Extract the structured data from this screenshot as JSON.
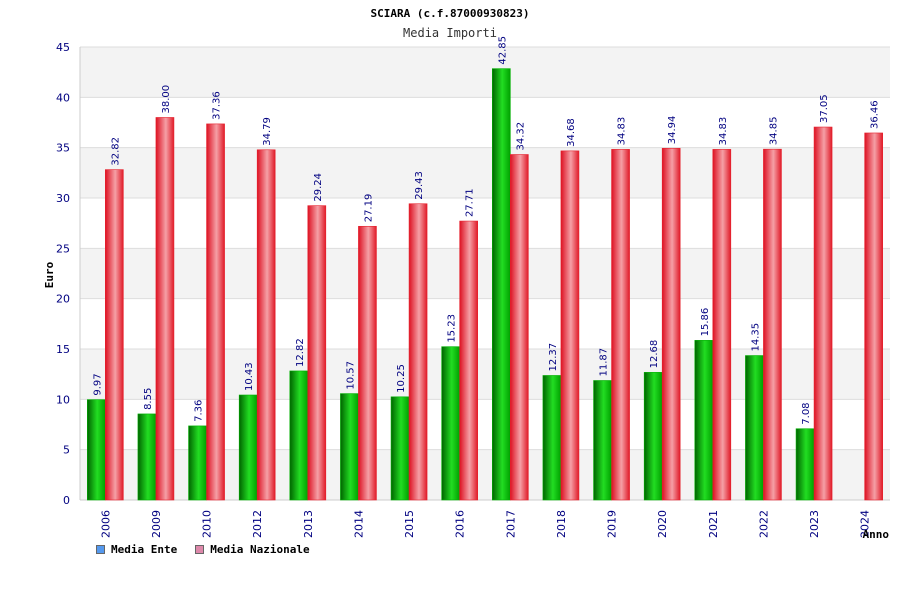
{
  "colors": {
    "ente": "#00b000",
    "nazionale": "#e6202c",
    "legend_ente": "#5599ee",
    "legend_nazionale": "#dd88aa",
    "band": "#f3f3f3"
  },
  "chart_data": {
    "type": "bar",
    "title": "SCIARA (c.f.87000930823)",
    "subtitle": "Media Importi",
    "xlabel": "Anno",
    "ylabel": "Euro",
    "ylim": [
      0,
      45
    ],
    "yticks": [
      0,
      5,
      10,
      15,
      20,
      25,
      30,
      35,
      40,
      45
    ],
    "grid": true,
    "legend_position": "bottom-left",
    "categories": [
      "2006",
      "2009",
      "2010",
      "2012",
      "2013",
      "2014",
      "2015",
      "2016",
      "2017",
      "2018",
      "2019",
      "2020",
      "2021",
      "2022",
      "2023",
      "2024"
    ],
    "series": [
      {
        "name": "Media Ente",
        "values": [
          9.97,
          8.55,
          7.36,
          10.43,
          12.82,
          10.57,
          10.25,
          15.23,
          42.85,
          12.37,
          11.87,
          12.68,
          15.86,
          14.35,
          7.08,
          null
        ],
        "labels": [
          "9.97",
          "8.55",
          "7.36",
          "10.43",
          "12.82",
          "10.57",
          "10.25",
          "15.23",
          "42.85",
          "12.37",
          "11.87",
          "12.68",
          "15.86",
          "14.35",
          "7.08",
          ""
        ]
      },
      {
        "name": "Media Nazionale",
        "values": [
          32.82,
          38.0,
          37.36,
          34.79,
          29.24,
          27.19,
          29.43,
          27.71,
          34.32,
          34.68,
          34.83,
          34.94,
          34.83,
          34.85,
          37.05,
          36.46
        ],
        "labels": [
          "32.82",
          "38.00",
          "37.36",
          "34.79",
          "29.24",
          "27.19",
          "29.43",
          "27.71",
          "34.32",
          "34.68",
          "34.83",
          "34.94",
          "34.83",
          "34.85",
          "37.05",
          "36.46"
        ]
      }
    ]
  }
}
